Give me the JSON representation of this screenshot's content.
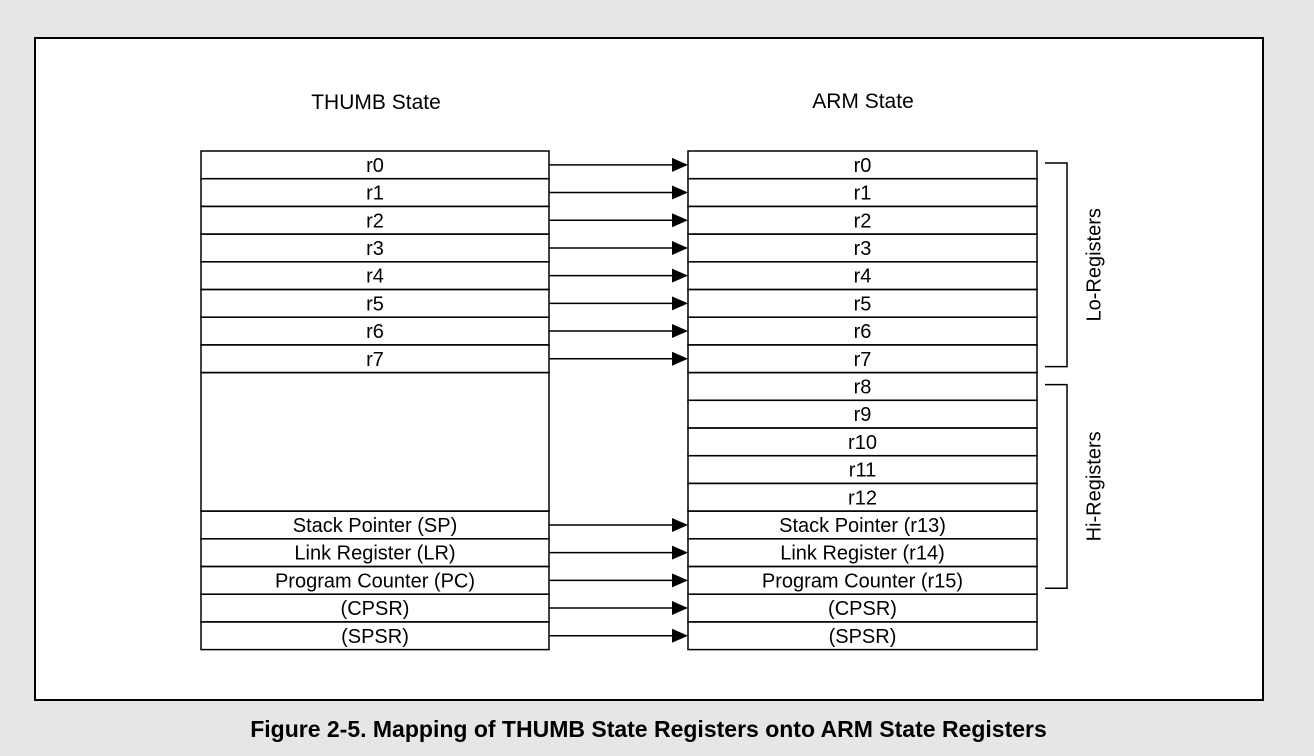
{
  "thumb": {
    "heading": "THUMB State",
    "rows": [
      "r0",
      "r1",
      "r2",
      "r3",
      "r4",
      "r5",
      "r6",
      "r7",
      "",
      "Stack Pointer (SP)",
      "Link Register (LR)",
      "Program Counter (PC)",
      "(CPSR)",
      "(SPSR)"
    ]
  },
  "arm": {
    "heading": "ARM State",
    "rows": [
      "r0",
      "r1",
      "r2",
      "r3",
      "r4",
      "r5",
      "r6",
      "r7",
      "r8",
      "r9",
      "r10",
      "r11",
      "r12",
      "Stack Pointer (r13)",
      "Link Register (r14)",
      "Program Counter (r15)",
      "(CPSR)",
      "(SPSR)"
    ]
  },
  "mappings": [
    {
      "from": "r0",
      "to": "r0"
    },
    {
      "from": "r1",
      "to": "r1"
    },
    {
      "from": "r2",
      "to": "r2"
    },
    {
      "from": "r3",
      "to": "r3"
    },
    {
      "from": "r4",
      "to": "r4"
    },
    {
      "from": "r5",
      "to": "r5"
    },
    {
      "from": "r6",
      "to": "r6"
    },
    {
      "from": "r7",
      "to": "r7"
    },
    {
      "from": "Stack Pointer (SP)",
      "to": "Stack Pointer (r13)"
    },
    {
      "from": "Link Register (LR)",
      "to": "Link Register (r14)"
    },
    {
      "from": "Program Counter (PC)",
      "to": "Program Counter (r15)"
    },
    {
      "from": "(CPSR)",
      "to": "(CPSR)"
    },
    {
      "from": "(SPSR)",
      "to": "(SPSR)"
    }
  ],
  "groups": [
    {
      "label": "Lo-Registers",
      "first": "r0",
      "last": "r7"
    },
    {
      "label": "Hi-Registers",
      "first": "r8",
      "last": "Program Counter (r15)"
    }
  ],
  "caption": "Figure 2-5. Mapping of THUMB State Registers onto ARM State Registers",
  "colors": {
    "page": "#e6e6e6",
    "frame": "#ffffff",
    "ink": "#000000"
  }
}
